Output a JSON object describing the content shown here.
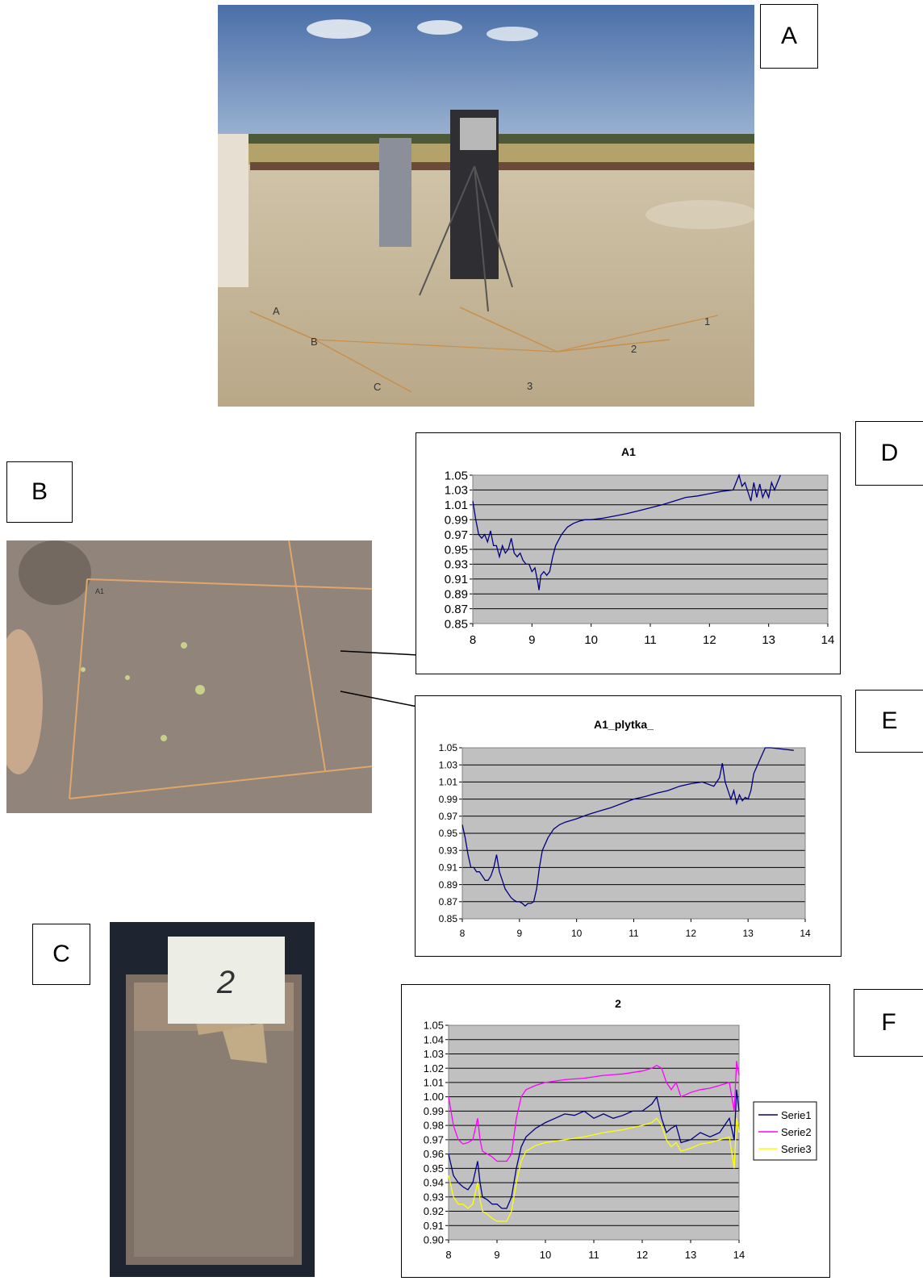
{
  "panels": {
    "A": "A",
    "B": "B",
    "C": "C",
    "D": "D",
    "E": "E",
    "F": "F"
  },
  "photo_a": {
    "grid_labels": [
      "A",
      "B",
      "C",
      "1",
      "2",
      "3"
    ]
  },
  "photo_b": {
    "cell_label": "A1"
  },
  "photo_c": {
    "card_text": "2"
  },
  "colors": {
    "plot_bg": "#c0c0c0",
    "series_blue": "#000080",
    "series_magenta": "#ff00ff",
    "series_yellow": "#ffff00"
  },
  "chart_data": [
    {
      "type": "line",
      "title": "A1",
      "xlim": [
        8,
        14
      ],
      "ylim": [
        0.85,
        1.05
      ],
      "x_ticks": [
        "8",
        "9",
        "10",
        "11",
        "12",
        "13",
        "14"
      ],
      "y_ticks": [
        "1.05",
        "1.03",
        "1.01",
        "0.99",
        "0.97",
        "0.95",
        "0.93",
        "0.91",
        "0.89",
        "0.87",
        "0.85"
      ],
      "series": [
        {
          "color": "#000080",
          "points": [
            [
              8.0,
              1.015
            ],
            [
              8.05,
              0.99
            ],
            [
              8.1,
              0.97
            ],
            [
              8.15,
              0.965
            ],
            [
              8.2,
              0.97
            ],
            [
              8.25,
              0.96
            ],
            [
              8.3,
              0.975
            ],
            [
              8.35,
              0.955
            ],
            [
              8.4,
              0.955
            ],
            [
              8.45,
              0.94
            ],
            [
              8.5,
              0.955
            ],
            [
              8.55,
              0.945
            ],
            [
              8.6,
              0.95
            ],
            [
              8.65,
              0.965
            ],
            [
              8.7,
              0.945
            ],
            [
              8.75,
              0.94
            ],
            [
              8.8,
              0.945
            ],
            [
              8.85,
              0.935
            ],
            [
              8.9,
              0.93
            ],
            [
              8.95,
              0.93
            ],
            [
              9.0,
              0.92
            ],
            [
              9.05,
              0.925
            ],
            [
              9.1,
              0.905
            ],
            [
              9.12,
              0.895
            ],
            [
              9.15,
              0.915
            ],
            [
              9.2,
              0.92
            ],
            [
              9.25,
              0.915
            ],
            [
              9.3,
              0.92
            ],
            [
              9.35,
              0.94
            ],
            [
              9.4,
              0.955
            ],
            [
              9.5,
              0.97
            ],
            [
              9.6,
              0.98
            ],
            [
              9.7,
              0.985
            ],
            [
              9.8,
              0.988
            ],
            [
              9.9,
              0.99
            ],
            [
              10.0,
              0.99
            ],
            [
              10.2,
              0.992
            ],
            [
              10.4,
              0.995
            ],
            [
              10.6,
              0.998
            ],
            [
              10.8,
              1.002
            ],
            [
              11.0,
              1.006
            ],
            [
              11.2,
              1.01
            ],
            [
              11.4,
              1.015
            ],
            [
              11.6,
              1.02
            ],
            [
              11.8,
              1.022
            ],
            [
              12.0,
              1.025
            ],
            [
              12.2,
              1.028
            ],
            [
              12.4,
              1.03
            ],
            [
              12.5,
              1.05
            ],
            [
              12.55,
              1.035
            ],
            [
              12.6,
              1.04
            ],
            [
              12.7,
              1.015
            ],
            [
              12.75,
              1.04
            ],
            [
              12.8,
              1.02
            ],
            [
              12.85,
              1.038
            ],
            [
              12.9,
              1.02
            ],
            [
              12.95,
              1.03
            ],
            [
              13.0,
              1.02
            ],
            [
              13.05,
              1.04
            ],
            [
              13.1,
              1.03
            ],
            [
              13.2,
              1.05
            ]
          ]
        }
      ]
    },
    {
      "type": "line",
      "title": "A1_plytka_",
      "xlim": [
        8,
        14
      ],
      "ylim": [
        0.85,
        1.05
      ],
      "x_ticks": [
        "8",
        "9",
        "10",
        "11",
        "12",
        "13",
        "14"
      ],
      "y_ticks": [
        "1.05",
        "1.03",
        "1.01",
        "0.99",
        "0.97",
        "0.95",
        "0.93",
        "0.91",
        "0.89",
        "0.87",
        "0.85"
      ],
      "series": [
        {
          "color": "#000080",
          "points": [
            [
              8.0,
              0.96
            ],
            [
              8.05,
              0.945
            ],
            [
              8.1,
              0.925
            ],
            [
              8.15,
              0.91
            ],
            [
              8.2,
              0.91
            ],
            [
              8.25,
              0.905
            ],
            [
              8.3,
              0.905
            ],
            [
              8.35,
              0.9
            ],
            [
              8.4,
              0.895
            ],
            [
              8.45,
              0.895
            ],
            [
              8.5,
              0.9
            ],
            [
              8.55,
              0.91
            ],
            [
              8.6,
              0.925
            ],
            [
              8.65,
              0.905
            ],
            [
              8.7,
              0.895
            ],
            [
              8.75,
              0.885
            ],
            [
              8.8,
              0.88
            ],
            [
              8.85,
              0.875
            ],
            [
              8.9,
              0.872
            ],
            [
              8.95,
              0.87
            ],
            [
              9.0,
              0.87
            ],
            [
              9.05,
              0.868
            ],
            [
              9.1,
              0.865
            ],
            [
              9.15,
              0.868
            ],
            [
              9.2,
              0.868
            ],
            [
              9.25,
              0.87
            ],
            [
              9.3,
              0.885
            ],
            [
              9.35,
              0.91
            ],
            [
              9.4,
              0.93
            ],
            [
              9.5,
              0.945
            ],
            [
              9.6,
              0.955
            ],
            [
              9.7,
              0.96
            ],
            [
              9.8,
              0.963
            ],
            [
              10.0,
              0.967
            ],
            [
              10.2,
              0.972
            ],
            [
              10.4,
              0.976
            ],
            [
              10.6,
              0.98
            ],
            [
              10.8,
              0.985
            ],
            [
              11.0,
              0.99
            ],
            [
              11.2,
              0.993
            ],
            [
              11.4,
              0.997
            ],
            [
              11.6,
              1.0
            ],
            [
              11.8,
              1.005
            ],
            [
              12.0,
              1.008
            ],
            [
              12.2,
              1.01
            ],
            [
              12.4,
              1.005
            ],
            [
              12.5,
              1.015
            ],
            [
              12.55,
              1.032
            ],
            [
              12.6,
              1.01
            ],
            [
              12.7,
              0.99
            ],
            [
              12.75,
              1.0
            ],
            [
              12.8,
              0.985
            ],
            [
              12.85,
              0.995
            ],
            [
              12.9,
              0.988
            ],
            [
              12.95,
              0.992
            ],
            [
              13.0,
              0.99
            ],
            [
              13.05,
              1.0
            ],
            [
              13.1,
              1.02
            ],
            [
              13.2,
              1.035
            ],
            [
              13.3,
              1.05
            ],
            [
              13.4,
              1.05
            ],
            [
              13.8,
              1.047
            ]
          ]
        }
      ]
    },
    {
      "type": "line",
      "title": "2",
      "xlim": [
        8,
        14
      ],
      "ylim": [
        0.9,
        1.05
      ],
      "x_ticks": [
        "8",
        "9",
        "10",
        "11",
        "12",
        "13",
        "14"
      ],
      "y_ticks": [
        "1.05",
        "1.04",
        "1.03",
        "1.02",
        "1.01",
        "1.00",
        "0.99",
        "0.98",
        "0.97",
        "0.96",
        "0.95",
        "0.94",
        "0.93",
        "0.92",
        "0.91",
        "0.90"
      ],
      "legend_position": "right",
      "series": [
        {
          "name": "Serie1",
          "color": "#000080",
          "points": [
            [
              8.0,
              0.96
            ],
            [
              8.1,
              0.945
            ],
            [
              8.2,
              0.94
            ],
            [
              8.3,
              0.937
            ],
            [
              8.4,
              0.935
            ],
            [
              8.5,
              0.94
            ],
            [
              8.6,
              0.955
            ],
            [
              8.65,
              0.94
            ],
            [
              8.7,
              0.93
            ],
            [
              8.8,
              0.928
            ],
            [
              8.9,
              0.925
            ],
            [
              9.0,
              0.925
            ],
            [
              9.1,
              0.922
            ],
            [
              9.2,
              0.922
            ],
            [
              9.3,
              0.93
            ],
            [
              9.4,
              0.95
            ],
            [
              9.5,
              0.965
            ],
            [
              9.6,
              0.972
            ],
            [
              9.8,
              0.978
            ],
            [
              10.0,
              0.982
            ],
            [
              10.2,
              0.985
            ],
            [
              10.4,
              0.988
            ],
            [
              10.6,
              0.987
            ],
            [
              10.8,
              0.99
            ],
            [
              11.0,
              0.985
            ],
            [
              11.2,
              0.988
            ],
            [
              11.4,
              0.985
            ],
            [
              11.6,
              0.987
            ],
            [
              11.8,
              0.99
            ],
            [
              12.0,
              0.99
            ],
            [
              12.2,
              0.995
            ],
            [
              12.3,
              1.0
            ],
            [
              12.4,
              0.985
            ],
            [
              12.5,
              0.975
            ],
            [
              12.6,
              0.978
            ],
            [
              12.7,
              0.98
            ],
            [
              12.8,
              0.968
            ],
            [
              13.0,
              0.97
            ],
            [
              13.2,
              0.975
            ],
            [
              13.4,
              0.972
            ],
            [
              13.6,
              0.975
            ],
            [
              13.7,
              0.98
            ],
            [
              13.8,
              0.985
            ],
            [
              13.9,
              0.97
            ],
            [
              13.95,
              1.005
            ],
            [
              14.0,
              0.99
            ]
          ]
        },
        {
          "name": "Serie2",
          "color": "#ff00ff",
          "points": [
            [
              8.0,
              1.0
            ],
            [
              8.1,
              0.98
            ],
            [
              8.2,
              0.97
            ],
            [
              8.3,
              0.967
            ],
            [
              8.4,
              0.968
            ],
            [
              8.5,
              0.97
            ],
            [
              8.6,
              0.985
            ],
            [
              8.65,
              0.97
            ],
            [
              8.7,
              0.962
            ],
            [
              8.8,
              0.96
            ],
            [
              8.9,
              0.958
            ],
            [
              9.0,
              0.955
            ],
            [
              9.1,
              0.955
            ],
            [
              9.2,
              0.955
            ],
            [
              9.3,
              0.96
            ],
            [
              9.4,
              0.985
            ],
            [
              9.5,
              1.0
            ],
            [
              9.6,
              1.005
            ],
            [
              9.8,
              1.008
            ],
            [
              10.0,
              1.01
            ],
            [
              10.4,
              1.012
            ],
            [
              10.8,
              1.013
            ],
            [
              11.2,
              1.015
            ],
            [
              11.6,
              1.016
            ],
            [
              12.0,
              1.018
            ],
            [
              12.2,
              1.02
            ],
            [
              12.3,
              1.022
            ],
            [
              12.4,
              1.02
            ],
            [
              12.5,
              1.01
            ],
            [
              12.6,
              1.005
            ],
            [
              12.7,
              1.01
            ],
            [
              12.8,
              1.0
            ],
            [
              13.0,
              1.003
            ],
            [
              13.2,
              1.005
            ],
            [
              13.4,
              1.006
            ],
            [
              13.6,
              1.008
            ],
            [
              13.8,
              1.01
            ],
            [
              13.9,
              0.99
            ],
            [
              13.95,
              1.025
            ],
            [
              14.0,
              1.015
            ]
          ]
        },
        {
          "name": "Serie3",
          "color": "#ffff00",
          "points": [
            [
              8.0,
              0.945
            ],
            [
              8.1,
              0.93
            ],
            [
              8.2,
              0.925
            ],
            [
              8.3,
              0.925
            ],
            [
              8.4,
              0.922
            ],
            [
              8.5,
              0.925
            ],
            [
              8.6,
              0.94
            ],
            [
              8.65,
              0.928
            ],
            [
              8.7,
              0.92
            ],
            [
              8.8,
              0.918
            ],
            [
              8.9,
              0.915
            ],
            [
              9.0,
              0.913
            ],
            [
              9.1,
              0.913
            ],
            [
              9.2,
              0.913
            ],
            [
              9.3,
              0.92
            ],
            [
              9.4,
              0.94
            ],
            [
              9.5,
              0.955
            ],
            [
              9.6,
              0.962
            ],
            [
              9.8,
              0.966
            ],
            [
              10.0,
              0.968
            ],
            [
              10.4,
              0.97
            ],
            [
              10.8,
              0.972
            ],
            [
              11.2,
              0.975
            ],
            [
              11.6,
              0.977
            ],
            [
              12.0,
              0.98
            ],
            [
              12.2,
              0.982
            ],
            [
              12.3,
              0.985
            ],
            [
              12.4,
              0.98
            ],
            [
              12.5,
              0.97
            ],
            [
              12.6,
              0.965
            ],
            [
              12.7,
              0.968
            ],
            [
              12.8,
              0.962
            ],
            [
              13.0,
              0.964
            ],
            [
              13.2,
              0.967
            ],
            [
              13.4,
              0.968
            ],
            [
              13.6,
              0.97
            ],
            [
              13.8,
              0.972
            ],
            [
              13.9,
              0.95
            ],
            [
              13.95,
              0.985
            ],
            [
              14.0,
              0.975
            ]
          ]
        }
      ]
    }
  ]
}
